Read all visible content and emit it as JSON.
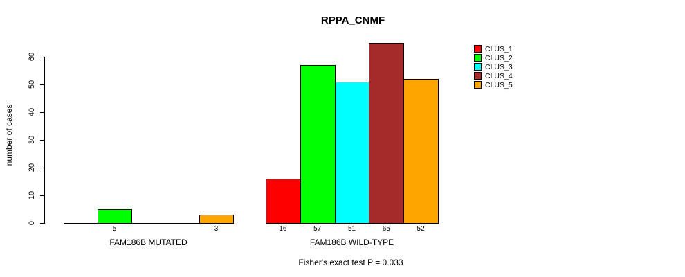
{
  "title": "RPPA_CNMF",
  "footer": "Fisher's exact test P = 0.033",
  "chart_data": {
    "type": "bar",
    "title": "RPPA_CNMF",
    "xlabel": "",
    "ylabel": "number of cases",
    "ylim": [
      0,
      65
    ],
    "yticks": [
      0,
      10,
      20,
      30,
      40,
      50,
      60
    ],
    "grid": false,
    "legend_position": "right",
    "series": [
      "CLUS_1",
      "CLUS_2",
      "CLUS_3",
      "CLUS_4",
      "CLUS_5"
    ],
    "series_colors": [
      "#FF0000",
      "#00FF00",
      "#00FFFF",
      "#A52A2A",
      "#FFA500"
    ],
    "groups": [
      {
        "label": "FAM186B MUTATED",
        "values": [
          0,
          5,
          0,
          0,
          3
        ]
      },
      {
        "label": "FAM186B WILD-TYPE",
        "values": [
          16,
          57,
          51,
          65,
          52
        ]
      }
    ],
    "bar_labels_note": "zero-value bars show no numeric label",
    "annotation": "Fisher's exact test P = 0.033"
  }
}
